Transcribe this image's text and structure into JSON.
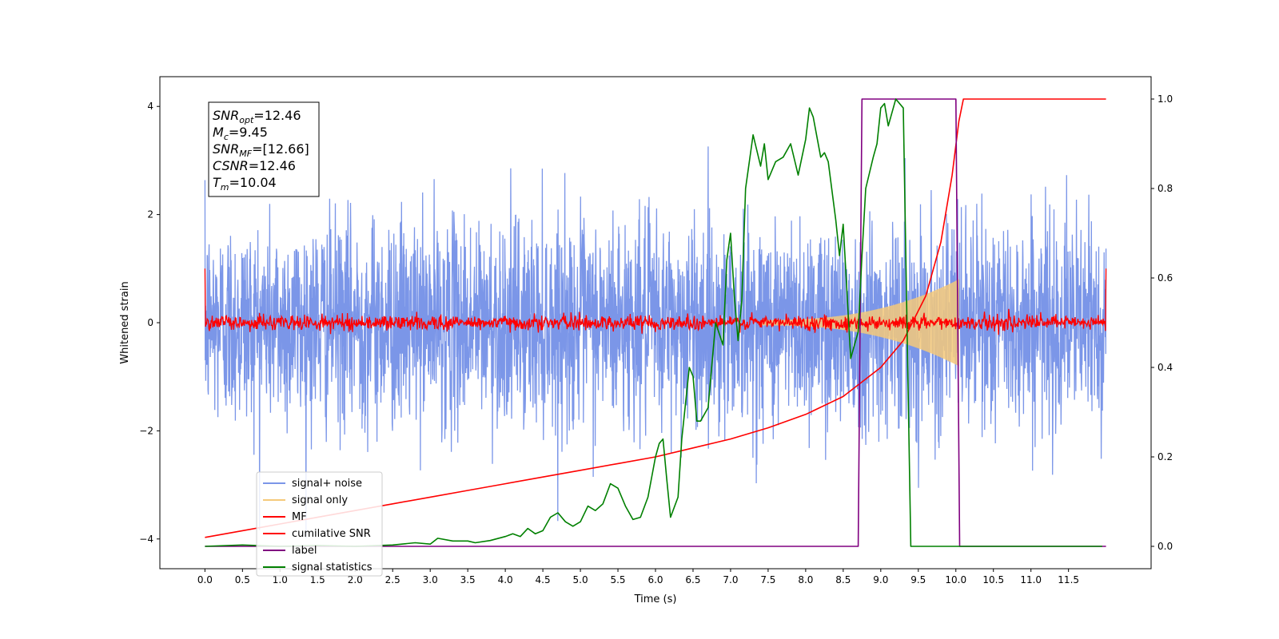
{
  "chart_data": {
    "type": "line",
    "xlabel": "Time (s)",
    "ylabel_left": "Whitened strain",
    "xlim": [
      -0.6,
      12.6
    ],
    "ylim_left": [
      -4.55,
      4.55
    ],
    "ylim_right": [
      -0.05,
      1.05
    ],
    "x_ticks": [
      0.0,
      0.5,
      1.0,
      1.5,
      2.0,
      2.5,
      3.0,
      3.5,
      4.0,
      4.5,
      5.0,
      5.5,
      6.0,
      6.5,
      7.0,
      7.5,
      8.0,
      8.5,
      9.0,
      9.5,
      10.0,
      10.5,
      11.0,
      11.5
    ],
    "x_tick_labels": [
      "0.0",
      "0.5",
      "1.0",
      "1.5",
      "2.0",
      "2.5",
      "3.0",
      "3.5",
      "4.0",
      "4.5",
      "5.0",
      "5.5",
      "6.0",
      "6.5",
      "7.0",
      "7.5",
      "8.0",
      "8.5",
      "9.0",
      "9.5",
      "10.0",
      "10.5",
      "11.0",
      "11.5"
    ],
    "y_left_ticks": [
      4,
      2,
      0,
      -2,
      -4
    ],
    "y_left_tick_labels": [
      "4",
      "2",
      "0",
      "−2",
      "−4"
    ],
    "y_right_ticks": [
      1.0,
      0.8,
      0.6,
      0.4,
      0.2,
      0.0
    ],
    "y_right_tick_labels": [
      "1.0",
      "0.8",
      "0.6",
      "0.4",
      "0.2",
      "0.0"
    ],
    "grid": false,
    "legend_position": "lower-left",
    "annotation_box": {
      "lines": [
        {
          "sym": "SNR",
          "sub": "opt",
          "val": "=12.46"
        },
        {
          "sym": "M",
          "sub": "c",
          "val": "=9.45"
        },
        {
          "sym": "SNR",
          "sub": "MF",
          "val": "=[12.66]"
        },
        {
          "sym": "CSNR",
          "sub": "",
          "val": "=12.46"
        },
        {
          "sym": "T",
          "sub": "m",
          "val": "=10.04"
        }
      ]
    },
    "series": [
      {
        "name": "signal+ noise",
        "color": "#7b96e8",
        "axis": "left",
        "style": "noise",
        "t_range": [
          0.0,
          12.0
        ],
        "envelope_typical": 2.6,
        "envelope_peak": 4.1
      },
      {
        "name": "signal only",
        "color": "#f5c97a",
        "axis": "left",
        "style": "chirp",
        "t_range": [
          7.4,
          10.04
        ],
        "amplitude_start": 0.05,
        "amplitude_end": 0.8
      },
      {
        "name": "MF",
        "color": "#ff0000",
        "axis": "left",
        "style": "noise",
        "t_range": [
          0.0,
          12.0
        ],
        "envelope_typical": 0.15,
        "edge_value": 1.0
      },
      {
        "name": "cumilative SNR",
        "color": "#ff0000",
        "axis": "right",
        "x": [
          0.0,
          0.5,
          1.0,
          1.5,
          2.0,
          2.5,
          3.0,
          3.5,
          4.0,
          4.5,
          5.0,
          5.5,
          6.0,
          6.5,
          7.0,
          7.5,
          8.0,
          8.5,
          9.0,
          9.3,
          9.6,
          9.8,
          9.95,
          10.04,
          10.1,
          12.0
        ],
        "y": [
          0.02,
          0.035,
          0.05,
          0.065,
          0.08,
          0.095,
          0.11,
          0.125,
          0.14,
          0.155,
          0.17,
          0.185,
          0.2,
          0.22,
          0.24,
          0.265,
          0.295,
          0.335,
          0.4,
          0.46,
          0.56,
          0.68,
          0.83,
          0.95,
          1.0,
          1.0
        ]
      },
      {
        "name": "label",
        "color": "#800080",
        "axis": "right",
        "x": [
          0.0,
          8.7,
          8.75,
          10.0,
          10.05,
          12.0
        ],
        "y": [
          0.0,
          0.0,
          1.0,
          1.0,
          0.0,
          0.0
        ]
      },
      {
        "name": "signal statistics",
        "color": "#008000",
        "axis": "right",
        "x": [
          0.0,
          0.5,
          1.0,
          1.5,
          2.0,
          2.5,
          2.8,
          3.0,
          3.1,
          3.3,
          3.5,
          3.6,
          3.8,
          4.0,
          4.1,
          4.2,
          4.3,
          4.4,
          4.5,
          4.6,
          4.7,
          4.8,
          4.9,
          5.0,
          5.1,
          5.2,
          5.3,
          5.4,
          5.5,
          5.6,
          5.7,
          5.8,
          5.9,
          6.0,
          6.05,
          6.1,
          6.15,
          6.2,
          6.3,
          6.35,
          6.45,
          6.5,
          6.55,
          6.6,
          6.7,
          6.8,
          6.9,
          6.95,
          7.0,
          7.05,
          7.1,
          7.15,
          7.2,
          7.3,
          7.4,
          7.45,
          7.5,
          7.6,
          7.7,
          7.8,
          7.9,
          8.0,
          8.05,
          8.1,
          8.2,
          8.25,
          8.3,
          8.4,
          8.45,
          8.5,
          8.6,
          8.7,
          8.75,
          8.8,
          8.9,
          8.95,
          9.0,
          9.05,
          9.1,
          9.15,
          9.2,
          9.3,
          9.4,
          9.5,
          9.6,
          9.65,
          9.7,
          9.8,
          9.9,
          9.95,
          10.0,
          10.05,
          10.1,
          11.0,
          11.5,
          11.95
        ],
        "y": [
          0.0,
          0.003,
          0.0,
          0.002,
          0.0,
          0.003,
          0.008,
          0.005,
          0.018,
          0.012,
          0.012,
          0.008,
          0.013,
          0.022,
          0.028,
          0.022,
          0.04,
          0.028,
          0.035,
          0.065,
          0.075,
          0.055,
          0.045,
          0.055,
          0.09,
          0.08,
          0.095,
          0.14,
          0.13,
          0.09,
          0.06,
          0.065,
          0.11,
          0.2,
          0.23,
          0.24,
          0.15,
          0.065,
          0.11,
          0.24,
          0.4,
          0.38,
          0.28,
          0.28,
          0.31,
          0.5,
          0.45,
          0.64,
          0.7,
          0.56,
          0.46,
          0.55,
          0.8,
          0.92,
          0.85,
          0.9,
          0.82,
          0.86,
          0.87,
          0.9,
          0.83,
          0.91,
          0.98,
          0.96,
          0.87,
          0.88,
          0.86,
          0.73,
          0.65,
          0.72,
          0.42,
          0.48,
          0.65,
          0.8,
          0.87,
          0.9,
          0.98,
          0.99,
          0.94,
          0.97,
          1.0,
          0.98,
          0.0,
          0.0,
          0.0,
          0.0,
          0.0,
          0.0,
          0.0,
          0.0,
          0.0,
          0.0,
          0.0,
          0.0,
          0.0,
          0.0
        ]
      }
    ]
  }
}
